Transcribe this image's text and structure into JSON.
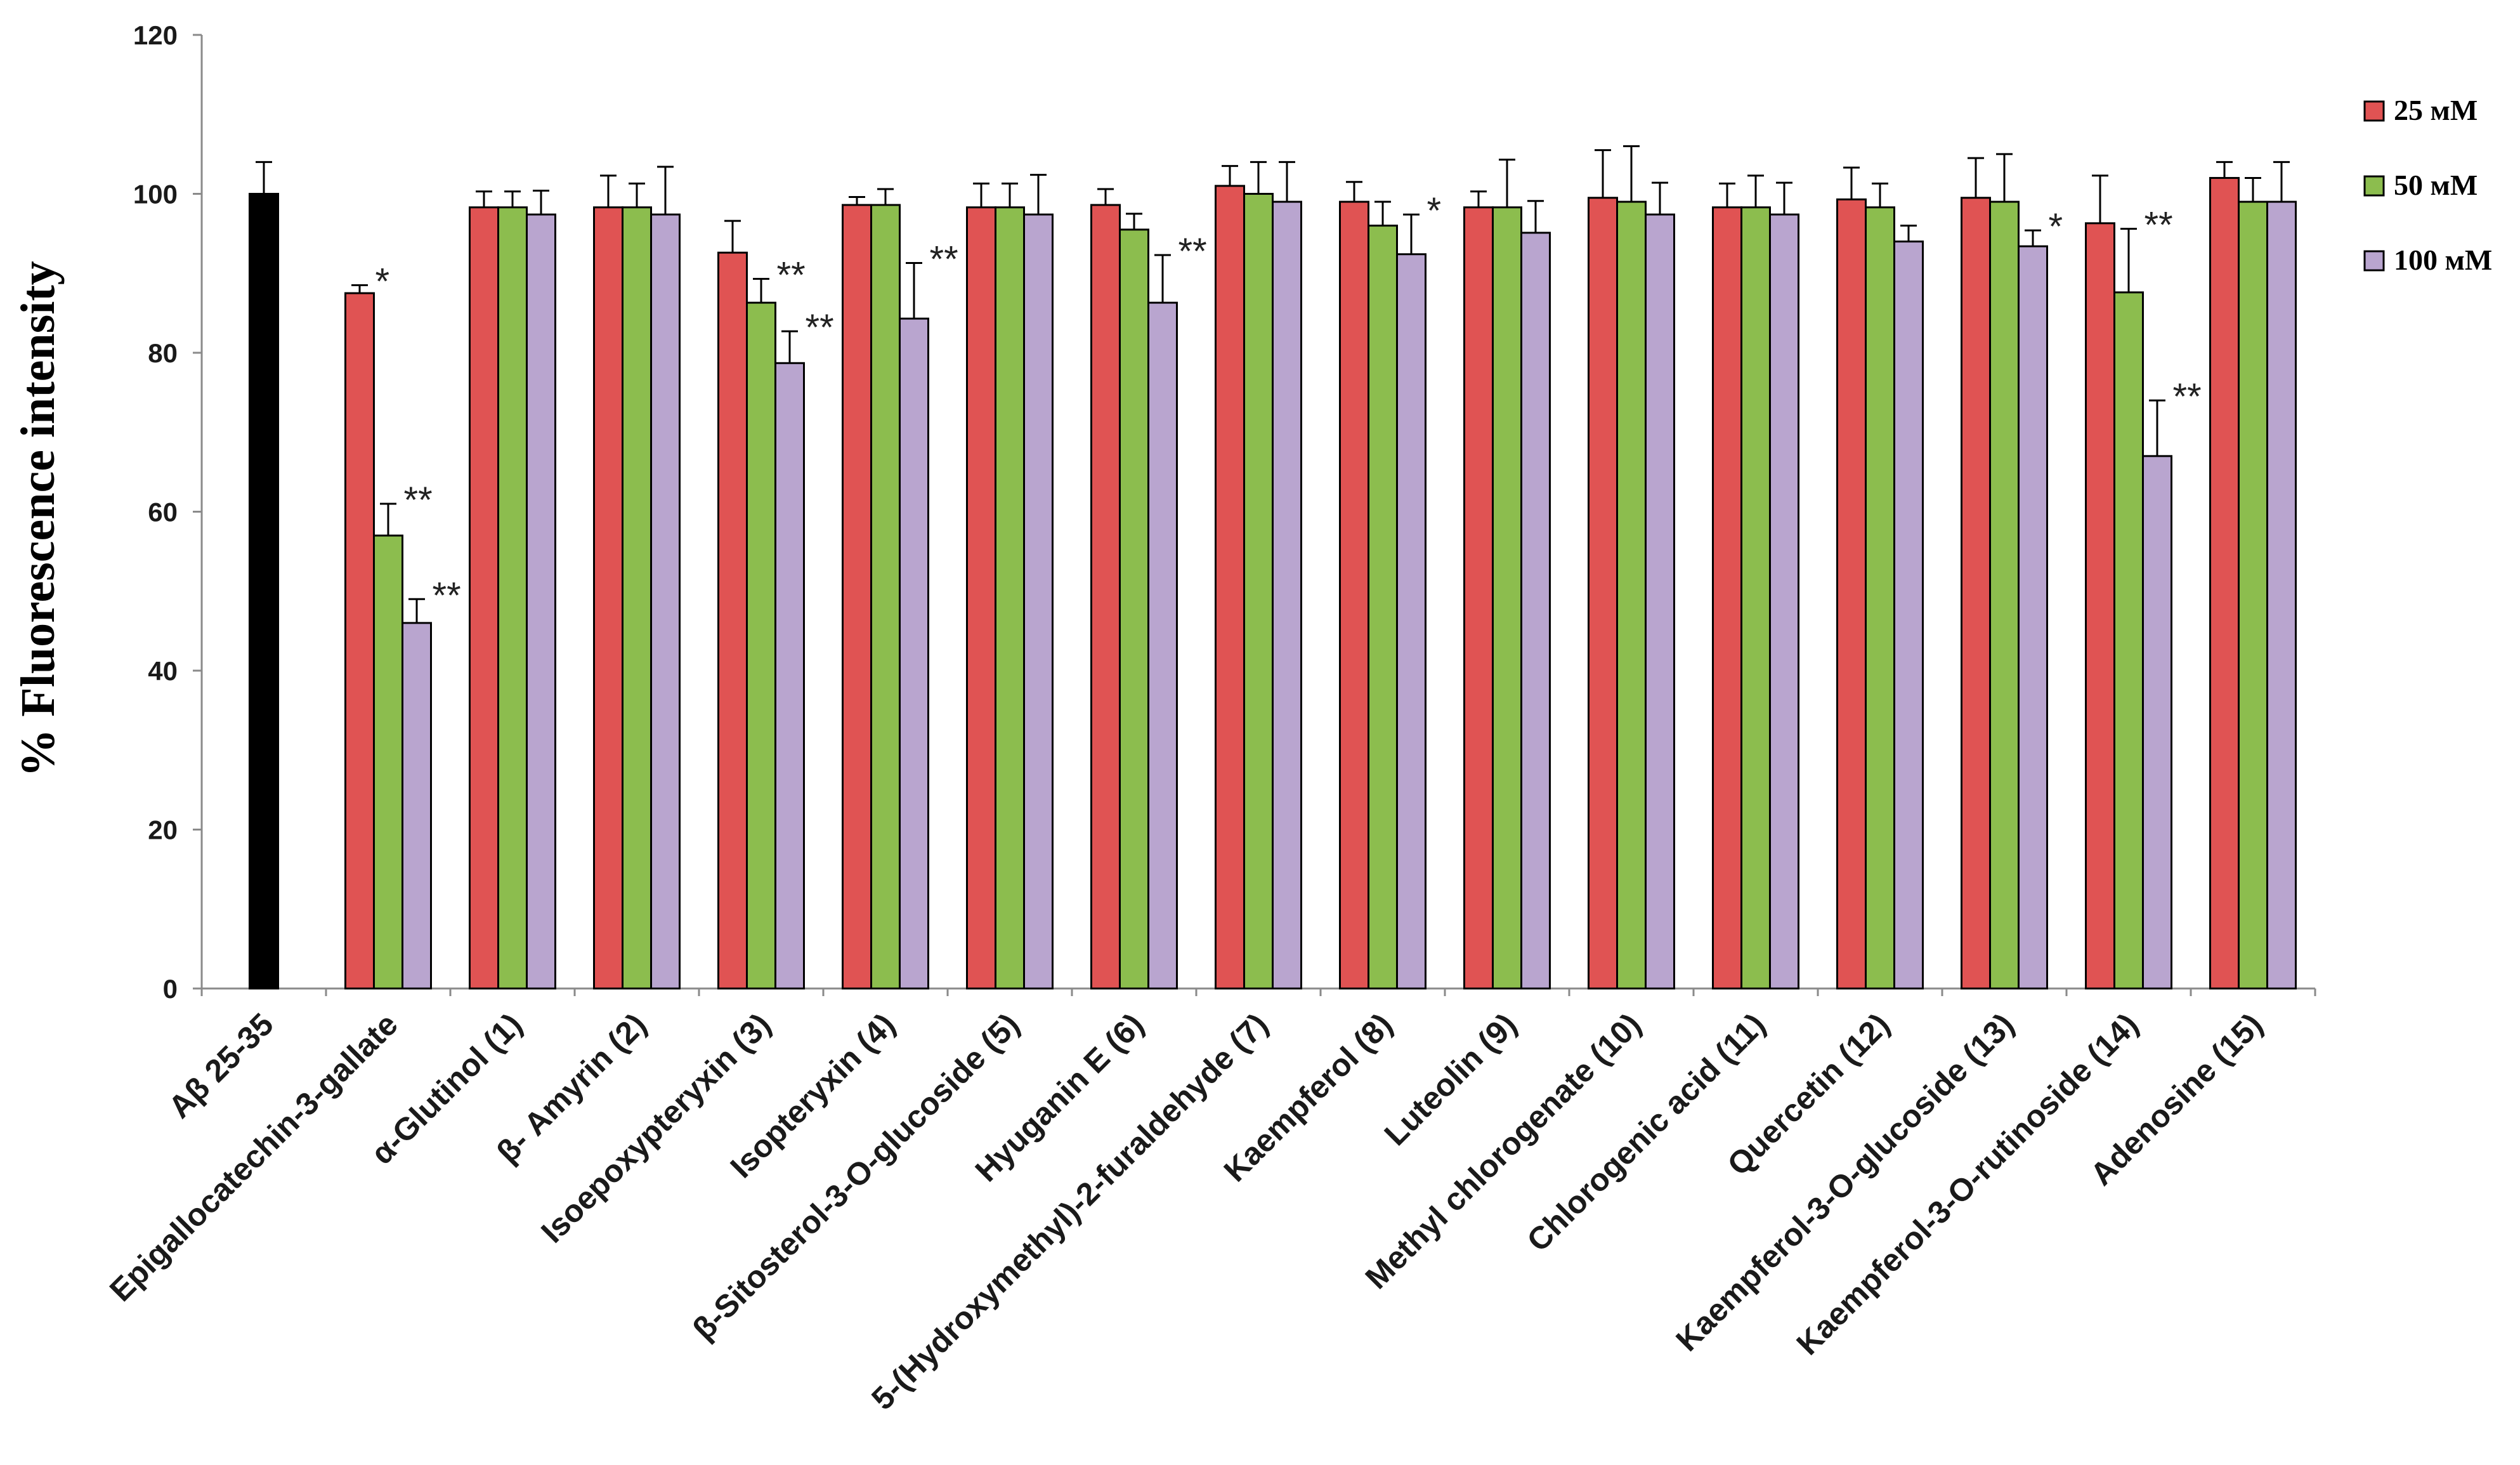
{
  "chart_data": {
    "type": "bar",
    "title": "",
    "xlabel": "",
    "ylabel": "% Fluorescence intensity",
    "ylim": [
      0,
      120
    ],
    "yticks": [
      0,
      20,
      40,
      60,
      80,
      100,
      120
    ],
    "grid": false,
    "legend_position": "top-right",
    "colors": {
      "control": "#000000",
      "25": "#E05353",
      "50": "#8CBD4E",
      "100": "#B9A5CF"
    },
    "series": [
      {
        "name": "25 мM",
        "color": "#E05353"
      },
      {
        "name": "50 мM",
        "color": "#8CBD4E"
      },
      {
        "name": "100 мM",
        "color": "#B9A5CF"
      }
    ],
    "categories": [
      {
        "label": "Aβ 25-35",
        "control": {
          "value": 100,
          "err": 4
        }
      },
      {
        "label": "Epigallocatechin-3-gallate",
        "bars": [
          {
            "value": 87.5,
            "err": 1,
            "sig": "*"
          },
          {
            "value": 57,
            "err": 4,
            "sig": "**"
          },
          {
            "value": 46,
            "err": 3,
            "sig": "**"
          }
        ]
      },
      {
        "label": "α-Glutinol (1)",
        "bars": [
          {
            "value": 98.3,
            "err": 2,
            "sig": ""
          },
          {
            "value": 98.3,
            "err": 2,
            "sig": ""
          },
          {
            "value": 97.4,
            "err": 3,
            "sig": ""
          }
        ]
      },
      {
        "label": "β- Amyrin (2)",
        "bars": [
          {
            "value": 98.3,
            "err": 4,
            "sig": ""
          },
          {
            "value": 98.3,
            "err": 3,
            "sig": ""
          },
          {
            "value": 97.4,
            "err": 6,
            "sig": ""
          }
        ]
      },
      {
        "label": "Isoepoxypteryxin (3)",
        "bars": [
          {
            "value": 92.6,
            "err": 4,
            "sig": ""
          },
          {
            "value": 86.3,
            "err": 3,
            "sig": "**"
          },
          {
            "value": 78.7,
            "err": 4,
            "sig": "**"
          }
        ]
      },
      {
        "label": "Isopteryxin (4)",
        "bars": [
          {
            "value": 98.6,
            "err": 1,
            "sig": ""
          },
          {
            "value": 98.6,
            "err": 2,
            "sig": ""
          },
          {
            "value": 84.3,
            "err": 7,
            "sig": "**"
          }
        ]
      },
      {
        "label": "β-Sitosterol-3-O-glucoside  (5)",
        "bars": [
          {
            "value": 98.3,
            "err": 3,
            "sig": ""
          },
          {
            "value": 98.3,
            "err": 3,
            "sig": ""
          },
          {
            "value": 97.4,
            "err": 5,
            "sig": ""
          }
        ]
      },
      {
        "label": "Hyuganin E (6)",
        "bars": [
          {
            "value": 98.6,
            "err": 2,
            "sig": ""
          },
          {
            "value": 95.5,
            "err": 2,
            "sig": ""
          },
          {
            "value": 86.3,
            "err": 6,
            "sig": "**"
          }
        ]
      },
      {
        "label": "5-(Hydroxymethyl)-2-furaldehyde (7)",
        "bars": [
          {
            "value": 101,
            "err": 2.5,
            "sig": ""
          },
          {
            "value": 100,
            "err": 4,
            "sig": ""
          },
          {
            "value": 99,
            "err": 5,
            "sig": ""
          }
        ]
      },
      {
        "label": "Kaempferol (8)",
        "bars": [
          {
            "value": 99,
            "err": 2.5,
            "sig": ""
          },
          {
            "value": 96,
            "err": 3,
            "sig": ""
          },
          {
            "value": 92.4,
            "err": 5,
            "sig": "*"
          }
        ]
      },
      {
        "label": "Luteolin (9)",
        "bars": [
          {
            "value": 98.3,
            "err": 2,
            "sig": ""
          },
          {
            "value": 98.3,
            "err": 6,
            "sig": ""
          },
          {
            "value": 95.1,
            "err": 4,
            "sig": ""
          }
        ]
      },
      {
        "label": "Methyl chlorogenate (10)",
        "bars": [
          {
            "value": 99.5,
            "err": 6,
            "sig": ""
          },
          {
            "value": 99,
            "err": 7,
            "sig": ""
          },
          {
            "value": 97.4,
            "err": 4,
            "sig": ""
          }
        ]
      },
      {
        "label": "Chlorogenic acid (11)",
        "bars": [
          {
            "value": 98.3,
            "err": 3,
            "sig": ""
          },
          {
            "value": 98.3,
            "err": 4,
            "sig": ""
          },
          {
            "value": 97.4,
            "err": 4,
            "sig": ""
          }
        ]
      },
      {
        "label": "Quercetin (12)",
        "bars": [
          {
            "value": 99.3,
            "err": 4,
            "sig": ""
          },
          {
            "value": 98.3,
            "err": 3,
            "sig": ""
          },
          {
            "value": 94,
            "err": 2,
            "sig": ""
          }
        ]
      },
      {
        "label": "Kaempferol-3-O-glucoside (13)",
        "bars": [
          {
            "value": 99.5,
            "err": 5,
            "sig": ""
          },
          {
            "value": 99,
            "err": 6,
            "sig": ""
          },
          {
            "value": 93.4,
            "err": 2,
            "sig": "*"
          }
        ]
      },
      {
        "label": "Kaempferol-3-O-rutinoside (14)",
        "bars": [
          {
            "value": 96.3,
            "err": 6,
            "sig": ""
          },
          {
            "value": 87.6,
            "err": 8,
            "sig": "**"
          },
          {
            "value": 67,
            "err": 7,
            "sig": "**"
          }
        ]
      },
      {
        "label": "Adenosine (15)",
        "bars": [
          {
            "value": 102,
            "err": 2,
            "sig": ""
          },
          {
            "value": 99,
            "err": 3,
            "sig": ""
          },
          {
            "value": 99,
            "err": 5,
            "sig": ""
          }
        ]
      }
    ]
  }
}
